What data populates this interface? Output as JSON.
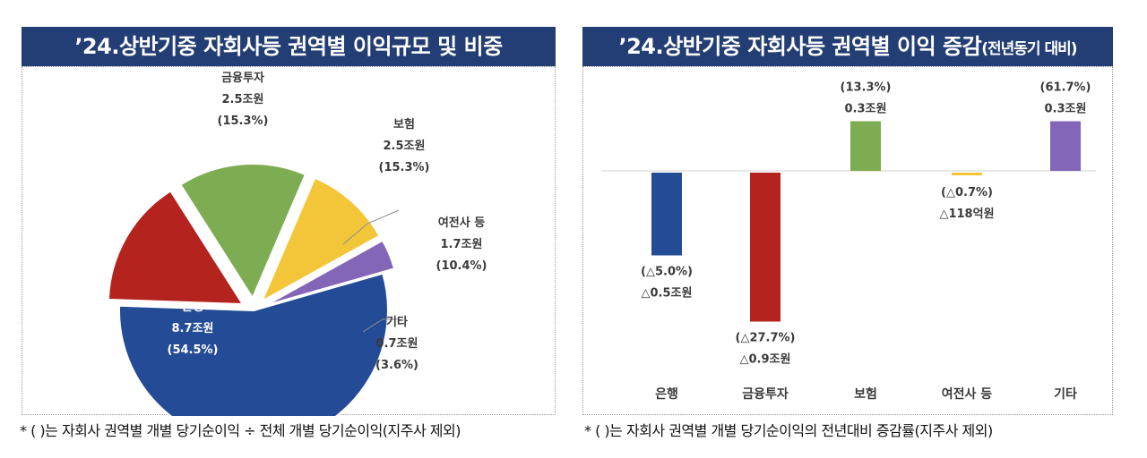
{
  "left": {
    "title": "’24.상반기중 자회사등 권역별 이익규모 및 비중",
    "footnote": "* (  )는 자회사 권역별 개별 당기순이익 ÷ 전체 개별 당기순이익(지주사 제외)"
  },
  "right": {
    "title_main": "’24.상반기중 자회사등 권역별 이익 증감",
    "title_sub": "(전년동기 대비)",
    "footnote": "* (  )는 자회사 권역별 개별 당기순이익의 전년대비 증감률(지주사 제외)"
  },
  "colors": {
    "title_bg": "#233e74",
    "은행": "#244c96",
    "금융투자": "#b5231f",
    "보험": "#7eac52",
    "여전사 등": "#f3c63a",
    "기타": "#8466b8"
  },
  "chart_data": [
    {
      "type": "pie",
      "title": "’24.상반기중 자회사등 권역별 이익규모 및 비중",
      "slices": [
        {
          "name": "은행",
          "value": 8.7,
          "value_label": "8.7조원",
          "share": 54.5,
          "share_label": "(54.5%)"
        },
        {
          "name": "금융투자",
          "value": 2.5,
          "value_label": "2.5조원",
          "share": 15.3,
          "share_label": "(15.3%)"
        },
        {
          "name": "보험",
          "value": 2.5,
          "value_label": "2.5조원",
          "share": 15.3,
          "share_label": "(15.3%)"
        },
        {
          "name": "여전사 등",
          "value": 1.7,
          "value_label": "1.7조원",
          "share": 10.4,
          "share_label": "(10.4%)"
        },
        {
          "name": "기타",
          "value": 0.7,
          "value_label": "0.7조원",
          "share": 3.6,
          "share_label": "(3.6%)"
        }
      ]
    },
    {
      "type": "bar",
      "title": "’24.상반기중 자회사등 권역별 이익 증감(전년동기 대비)",
      "categories": [
        "은행",
        "금융투자",
        "보험",
        "여전사 등",
        "기타"
      ],
      "values": [
        -0.5,
        -0.9,
        0.3,
        -0.0118,
        0.3
      ],
      "value_labels": [
        "△0.5조원",
        "△0.9조원",
        "0.3조원",
        "△118억원",
        "0.3조원"
      ],
      "rate_labels": [
        "(△5.0%)",
        "(△27.7%)",
        "(13.3%)",
        "(△0.7%)",
        "(61.7%)"
      ]
    }
  ]
}
